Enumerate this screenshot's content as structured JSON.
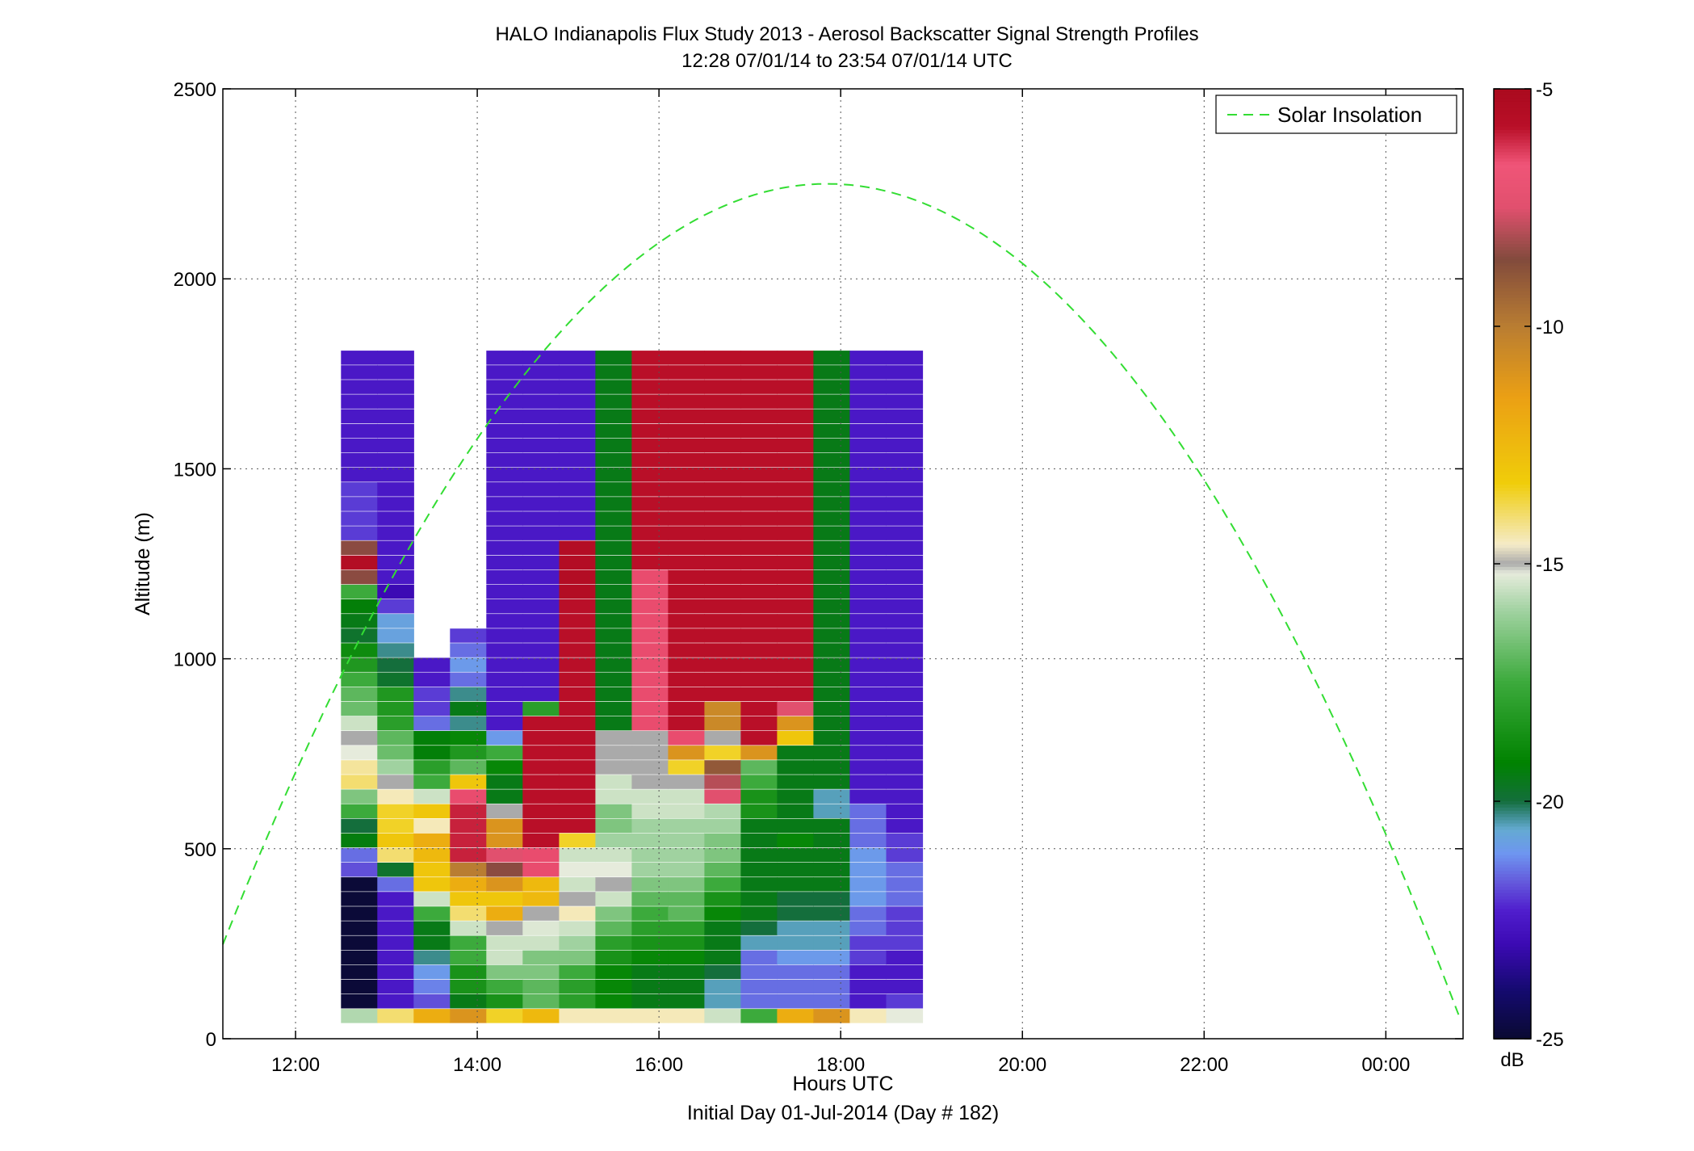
{
  "chart_data": {
    "type": "heatmap",
    "title": "HALO Indianapolis Flux Study 2013 - Aerosol Backscatter Signal Strength Profiles",
    "subtitle": "12:28 07/01/14 to 23:54 07/01/14  UTC",
    "xlabel": "Hours UTC",
    "xlabel2": "Initial Day 01-Jul-2014 (Day # 182)",
    "ylabel": "Altitude (m)",
    "xlim": [
      11.2,
      24.85
    ],
    "ylim": [
      0,
      2500
    ],
    "grid": true,
    "x_ticks": [
      12,
      14,
      16,
      18,
      20,
      22,
      24
    ],
    "x_tick_labels": [
      "12:00",
      "14:00",
      "16:00",
      "18:00",
      "20:00",
      "22:00",
      "00:00"
    ],
    "y_ticks": [
      0,
      500,
      1000,
      1500,
      2000,
      2500
    ],
    "y_tick_labels": [
      "0",
      "500",
      "1000",
      "1500",
      "2000",
      "2500"
    ],
    "colorbar": {
      "label": "dB",
      "range": [
        -25,
        -5
      ],
      "ticks": [
        -5,
        -10,
        -15,
        -20,
        -25
      ],
      "tick_labels": [
        "-5",
        "-10",
        "-15",
        "-20",
        "-25"
      ]
    },
    "legend": {
      "entries": [
        "Solar Insolation"
      ],
      "placement": "top-right"
    },
    "x_start_hour": 12.5,
    "col_width_hours": 0.4,
    "y_bin_m": 38.5,
    "profiles": [
      {
        "hour": 12.7,
        "values": [
          -15.8,
          -24.9,
          -24.9,
          -24.9,
          -24.9,
          -24.9,
          -24.9,
          -24.9,
          -24.9,
          -24.9,
          -21.8,
          -21.5,
          -19.4,
          -20.0,
          -17.5,
          -16.5,
          -14.0,
          -14.3,
          -15.2,
          -15.0,
          -15.5,
          -16.8,
          -17.0,
          -17.5,
          -18.3,
          -18.8,
          -19.8,
          -19.5,
          -19.3,
          -17.5,
          -8.5,
          -5.5,
          -8.5,
          -22.0,
          -22.0,
          -22.0,
          -22.0,
          -22.5,
          -22.5,
          -22.5,
          -22.5,
          -22.5,
          -22.5,
          -22.5,
          -22.5,
          -22.5
        ]
      },
      {
        "hour": 13.1,
        "values": [
          -14.0,
          -22.5,
          -22.5,
          -22.5,
          -22.5,
          -22.5,
          -22.5,
          -22.5,
          -22.5,
          -21.5,
          -19.8,
          -14.0,
          -13.0,
          -13.5,
          -13.5,
          -14.5,
          -15.0,
          -16.0,
          -16.8,
          -17.0,
          -18.0,
          -18.3,
          -18.3,
          -19.8,
          -20.0,
          -20.3,
          -20.8,
          -20.8,
          -22.0,
          -23.0,
          -22.5,
          -22.5,
          -22.5,
          -22.5,
          -22.5,
          -22.5,
          -22.5,
          -22.5,
          -22.5,
          -22.5,
          -22.5,
          -22.5,
          -22.5,
          -22.5,
          -22.5,
          -22.5
        ]
      },
      {
        "hour": 13.5,
        "values": [
          -12.0,
          -21.8,
          -21.3,
          -21.0,
          -20.3,
          -19.5,
          -19.5,
          -17.5,
          -15.5,
          -13.0,
          -13.0,
          -12.5,
          -12.0,
          -14.5,
          -13.0,
          -15.5,
          -17.5,
          -18.0,
          -19.3,
          -19.3,
          -21.5,
          -22.0,
          -22.0,
          -22.5,
          -22.5
        ]
      },
      {
        "hour": 13.9,
        "values": [
          -11.0,
          -19.5,
          -18.5,
          -18.5,
          -17.5,
          -17.5,
          -15.5,
          -14.0,
          -13.0,
          -12.0,
          -10.0,
          -6.0,
          -6.0,
          -6.0,
          -6.0,
          -6.5,
          -13.0,
          -17.0,
          -18.3,
          -19.0,
          -20.3,
          -19.5,
          -20.3,
          -21.5,
          -21.0,
          -21.5,
          -22.0
        ]
      },
      {
        "hour": 14.3,
        "values": [
          -13.5,
          -18.5,
          -17.5,
          -16.5,
          -15.5,
          -15.5,
          -15.0,
          -12.0,
          -13.0,
          -11.0,
          -8.5,
          -7.5,
          -11.0,
          -11.0,
          -15.0,
          -19.5,
          -19.5,
          -19.0,
          -17.5,
          -21.0,
          -22.5,
          -22.5,
          -22.5,
          -22.5,
          -22.5,
          -22.5,
          -22.5,
          -22.5,
          -22.5,
          -22.5,
          -22.5,
          -22.5,
          -22.5,
          -22.5,
          -22.5,
          -22.5,
          -22.5,
          -22.5,
          -22.5,
          -22.5,
          -22.5,
          -22.5,
          -22.5,
          -22.5,
          -22.5,
          -22.5
        ]
      },
      {
        "hour": 14.7,
        "values": [
          -12.5,
          -17.0,
          -17.0,
          -16.5,
          -16.5,
          -15.5,
          -15.3,
          -15.0,
          -12.5,
          -12.5,
          -6.5,
          -6.5,
          -5.8,
          -5.8,
          -5.8,
          -5.8,
          -5.8,
          -5.8,
          -5.8,
          -5.8,
          -5.8,
          -18.0,
          -22.5,
          -22.5,
          -22.5,
          -22.5,
          -22.5,
          -22.5,
          -22.5,
          -22.5,
          -22.5,
          -22.5,
          -22.5,
          -22.5,
          -22.5,
          -22.5,
          -22.5,
          -22.5,
          -22.5,
          -22.5,
          -22.5,
          -22.5,
          -22.5,
          -22.5,
          -22.5,
          -22.5
        ]
      },
      {
        "hour": 15.1,
        "values": [
          -14.5,
          -18.0,
          -18.0,
          -17.5,
          -16.5,
          -16.0,
          -15.5,
          -14.5,
          -15.0,
          -15.5,
          -15.2,
          -15.5,
          -13.5,
          -5.8,
          -5.8,
          -5.8,
          -5.8,
          -5.8,
          -5.8,
          -5.8,
          -5.8,
          -5.8,
          -5.8,
          -5.8,
          -5.8,
          -5.8,
          -5.8,
          -5.8,
          -5.8,
          -5.5,
          -5.5,
          -5.5,
          -5.5,
          -22.5,
          -22.5,
          -22.5,
          -22.5,
          -22.5,
          -22.5,
          -22.5,
          -22.5,
          -22.5,
          -22.5,
          -22.5,
          -22.5,
          -22.5
        ]
      },
      {
        "hour": 15.5,
        "values": [
          -14.5,
          -19.0,
          -19.0,
          -19.0,
          -18.5,
          -18.0,
          -17.0,
          -16.5,
          -15.5,
          -15.0,
          -15.2,
          -15.5,
          -16.0,
          -16.5,
          -16.5,
          -15.5,
          -15.5,
          -15.0,
          -15.0,
          -15.0,
          -19.5,
          -19.5,
          -19.5,
          -19.5,
          -19.5,
          -19.5,
          -19.5,
          -19.5,
          -19.5,
          -19.5,
          -19.5,
          -19.5,
          -19.5,
          -19.5,
          -19.5,
          -19.5,
          -19.5,
          -19.5,
          -19.5,
          -19.5,
          -19.5,
          -19.5,
          -19.5,
          -19.5,
          -19.5,
          -19.5
        ]
      },
      {
        "hour": 15.9,
        "values": [
          -14.5,
          -19.5,
          -19.5,
          -19.5,
          -19.0,
          -18.5,
          -18.0,
          -17.5,
          -17.0,
          -16.5,
          -16.0,
          -16.0,
          -16.0,
          -16.0,
          -15.5,
          -15.5,
          -15.0,
          -15.0,
          -15.0,
          -15.0,
          -6.5,
          -6.5,
          -6.5,
          -6.5,
          -6.5,
          -6.5,
          -6.5,
          -6.5,
          -6.5,
          -6.5,
          -6.5,
          -5.8,
          -5.8,
          -5.8,
          -5.8,
          -5.8,
          -5.8,
          -5.8,
          -5.8,
          -5.8,
          -5.8,
          -5.8,
          -5.8,
          -5.8,
          -5.8,
          -5.8
        ]
      },
      {
        "hour": 16.3,
        "values": [
          -14.5,
          -19.5,
          -19.5,
          -19.5,
          -19.0,
          -18.5,
          -18.0,
          -17.0,
          -17.0,
          -16.5,
          -16.0,
          -16.0,
          -16.0,
          -16.0,
          -15.5,
          -15.5,
          -15.0,
          -13.5,
          -11.0,
          -6.5,
          -5.8,
          -5.8,
          -5.8,
          -5.8,
          -5.8,
          -5.8,
          -5.8,
          -5.8,
          -5.8,
          -5.8,
          -5.8,
          -5.8,
          -5.8,
          -5.8,
          -5.8,
          -5.8,
          -5.8,
          -5.8,
          -5.8,
          -5.8,
          -5.8,
          -5.8,
          -5.8,
          -5.8,
          -5.8,
          -5.8
        ]
      },
      {
        "hour": 16.7,
        "values": [
          -15.5,
          -20.5,
          -20.5,
          -20.0,
          -19.5,
          -19.5,
          -19.5,
          -19.0,
          -18.5,
          -17.5,
          -17.0,
          -16.5,
          -16.5,
          -16.0,
          -15.8,
          -7.5,
          -8.0,
          -9.0,
          -13.5,
          -15.0,
          -10.5,
          -10.5,
          -5.8,
          -5.8,
          -5.8,
          -5.8,
          -5.8,
          -5.8,
          -5.8,
          -5.8,
          -5.8,
          -5.8,
          -5.8,
          -5.8,
          -5.8,
          -5.8,
          -5.8,
          -5.8,
          -5.8,
          -5.8,
          -5.8,
          -5.8,
          -5.8,
          -5.8,
          -5.8,
          -5.8
        ]
      },
      {
        "hour": 17.1,
        "values": [
          -17.5,
          -21.5,
          -21.5,
          -21.5,
          -21.5,
          -20.5,
          -20.0,
          -19.5,
          -19.5,
          -19.5,
          -19.5,
          -19.5,
          -19.5,
          -19.5,
          -18.5,
          -18.5,
          -17.5,
          -17.0,
          -11.0,
          -5.8,
          -5.8,
          -5.8,
          -5.8,
          -5.8,
          -5.8,
          -5.8,
          -5.8,
          -5.8,
          -5.8,
          -5.8,
          -5.8,
          -5.8,
          -5.8,
          -5.8,
          -5.8,
          -5.8,
          -5.8,
          -5.8,
          -5.8,
          -5.8,
          -5.8,
          -5.8,
          -5.8,
          -5.8,
          -5.8,
          -5.8
        ]
      },
      {
        "hour": 17.5,
        "values": [
          -12.0,
          -21.5,
          -21.5,
          -21.5,
          -21.0,
          -20.5,
          -20.5,
          -20.0,
          -20.0,
          -19.5,
          -19.5,
          -19.5,
          -19.0,
          -19.5,
          -19.5,
          -19.5,
          -19.5,
          -19.5,
          -19.5,
          -13.0,
          -11.0,
          -7.5,
          -5.8,
          -5.8,
          -5.8,
          -5.8,
          -5.8,
          -5.8,
          -5.8,
          -5.8,
          -5.8,
          -5.8,
          -5.8,
          -5.8,
          -5.8,
          -5.8,
          -5.8,
          -5.8,
          -5.8,
          -5.8,
          -5.8,
          -5.8,
          -5.8,
          -5.8,
          -5.8,
          -5.8
        ]
      },
      {
        "hour": 17.9,
        "values": [
          -11.0,
          -21.5,
          -21.5,
          -21.5,
          -21.0,
          -20.5,
          -20.5,
          -20.0,
          -20.0,
          -19.5,
          -19.5,
          -19.5,
          -19.5,
          -19.5,
          -20.5,
          -20.5,
          -19.5,
          -19.5,
          -19.5,
          -19.5,
          -19.5,
          -19.5,
          -19.5,
          -19.5,
          -19.5,
          -19.5,
          -19.5,
          -19.5,
          -19.5,
          -19.5,
          -19.5,
          -19.5,
          -19.5,
          -19.5,
          -19.5,
          -19.5,
          -19.5,
          -19.5,
          -19.5,
          -19.5,
          -19.5,
          -19.5,
          -19.5,
          -19.5,
          -19.5,
          -19.5
        ]
      },
      {
        "hour": 18.3,
        "values": [
          -14.5,
          -22.5,
          -22.5,
          -22.5,
          -22.0,
          -22.0,
          -21.5,
          -21.5,
          -21.0,
          -21.0,
          -21.0,
          -21.0,
          -21.5,
          -21.5,
          -21.5,
          -22.5,
          -22.5,
          -22.5,
          -22.5,
          -22.5,
          -22.5,
          -22.5,
          -22.5,
          -22.5,
          -22.5,
          -22.5,
          -22.5,
          -22.5,
          -22.5,
          -22.5,
          -22.5,
          -22.5,
          -22.5,
          -22.5,
          -22.5,
          -22.5,
          -22.5,
          -22.5,
          -22.5,
          -22.5,
          -22.5,
          -22.5,
          -22.5,
          -22.5,
          -22.5,
          -22.5
        ]
      },
      {
        "hour": 18.7,
        "values": [
          -15.2,
          -22.0,
          -22.5,
          -22.5,
          -22.5,
          -22.0,
          -22.0,
          -22.0,
          -21.5,
          -21.5,
          -21.5,
          -22.0,
          -22.0,
          -22.5,
          -22.5,
          -22.5,
          -22.5,
          -22.5,
          -22.5,
          -22.5,
          -22.5,
          -22.5,
          -22.5,
          -22.5,
          -22.5,
          -22.5,
          -22.5,
          -22.5,
          -22.5,
          -22.5,
          -22.5,
          -22.5,
          -22.5,
          -22.5,
          -22.5,
          -22.5,
          -22.5,
          -22.5,
          -22.5,
          -22.5,
          -22.5,
          -22.5,
          -22.5,
          -22.5,
          -22.5,
          -22.5
        ]
      }
    ]
  }
}
